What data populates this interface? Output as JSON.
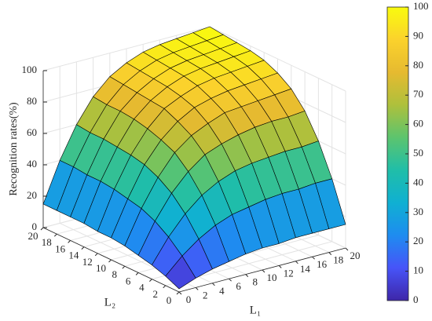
{
  "chart_data": {
    "type": "surface",
    "zlabel": "Recognition rates(%)",
    "xlabel": "L₁",
    "ylabel": "L₂",
    "x": [
      0,
      2,
      4,
      6,
      8,
      10,
      12,
      14,
      16,
      18,
      20
    ],
    "y": [
      0,
      2,
      4,
      6,
      8,
      10,
      12,
      14,
      16,
      18,
      20
    ],
    "z": [
      [
        2,
        6,
        9,
        11,
        13,
        14,
        14,
        15,
        15,
        15,
        15
      ],
      [
        6,
        16,
        24,
        30,
        34,
        36,
        38,
        39,
        39,
        40,
        40
      ],
      [
        9,
        24,
        36,
        45,
        51,
        55,
        57,
        58,
        59,
        59,
        60
      ],
      [
        11,
        30,
        45,
        56,
        64,
        68,
        71,
        73,
        74,
        74,
        75
      ],
      [
        13,
        34,
        51,
        64,
        72,
        77,
        81,
        82,
        83,
        84,
        85
      ],
      [
        14,
        36,
        55,
        68,
        77,
        83,
        86,
        88,
        89,
        90,
        91
      ],
      [
        14,
        38,
        57,
        71,
        81,
        86,
        90,
        92,
        93,
        94,
        95
      ],
      [
        15,
        39,
        58,
        73,
        82,
        88,
        92,
        94,
        95,
        96,
        97
      ],
      [
        15,
        39,
        59,
        74,
        83,
        89,
        93,
        95,
        96,
        97,
        98
      ],
      [
        15,
        40,
        59,
        74,
        84,
        90,
        94,
        96,
        97,
        98,
        99
      ],
      [
        15,
        40,
        60,
        75,
        85,
        91,
        95,
        97,
        98,
        99,
        100
      ]
    ],
    "xlim": [
      0,
      20
    ],
    "ylim": [
      0,
      20
    ],
    "zlim": [
      0,
      100
    ],
    "xticks": [
      0,
      2,
      4,
      6,
      8,
      10,
      12,
      14,
      16,
      18,
      20
    ],
    "yticks": [
      0,
      2,
      4,
      6,
      8,
      10,
      12,
      14,
      16,
      18,
      20
    ],
    "zticks": [
      0,
      20,
      40,
      60,
      80,
      100
    ],
    "clim": [
      0,
      100
    ],
    "cticks": [
      0,
      10,
      20,
      30,
      40,
      50,
      60,
      70,
      80,
      90,
      100
    ],
    "colormap": [
      "#3e26a8",
      "#4754f8",
      "#1e8cf0",
      "#10b0d2",
      "#20bea8",
      "#5cc46e",
      "#aec03c",
      "#e6ba30",
      "#fbd22c",
      "#f9fb0e"
    ],
    "grid": true,
    "edgecolor": "#000000"
  }
}
